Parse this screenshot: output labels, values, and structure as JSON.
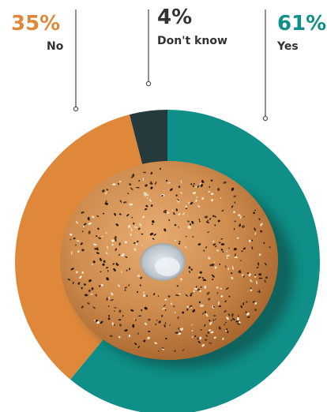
{
  "chart_data": {
    "type": "pie",
    "style": "donut-with-center-image",
    "slices": [
      {
        "label": "Yes",
        "value": 61,
        "value_text": "61%",
        "color": "#0f8f87"
      },
      {
        "label": "No",
        "value": 35,
        "value_text": "35%",
        "color": "#e0883a"
      },
      {
        "label": "Don't know",
        "value": 4,
        "value_text": "4%",
        "color": "#26393d"
      }
    ],
    "center_image": "everything-bagel",
    "legend": "callouts-at-top",
    "label_text_color": "#333333",
    "leader_line_color": "#555555"
  }
}
